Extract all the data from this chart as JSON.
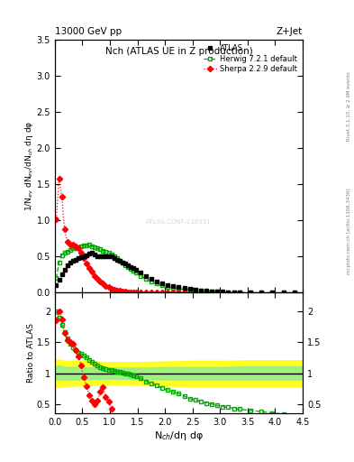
{
  "title_main": "13000 GeV pp",
  "title_right": "Z+Jet",
  "plot_title": "Nch (ATLAS UE in Z production)",
  "xlabel": "N$_{ch}$/dη dφ",
  "ylabel_main": "1/N$_{ev}$ dN$_{ev}$/dN$_{ch}$ dη dφ",
  "ylabel_ratio": "Ratio to ATLAS",
  "rivet_label": "Rivet 3.1.10, ≥ 2.9M events",
  "inspire_label": "mcplots.cern.ch [arXiv:1306.3436]",
  "watermark": "ATLAS-CONF-236531",
  "xlim": [
    0,
    4.5
  ],
  "ylim_main": [
    0,
    3.5
  ],
  "ylim_ratio": [
    0.35,
    2.3
  ],
  "atlas_x": [
    0.025,
    0.075,
    0.125,
    0.175,
    0.225,
    0.275,
    0.325,
    0.375,
    0.425,
    0.475,
    0.525,
    0.575,
    0.625,
    0.675,
    0.725,
    0.775,
    0.825,
    0.875,
    0.925,
    0.975,
    1.025,
    1.075,
    1.125,
    1.175,
    1.225,
    1.275,
    1.325,
    1.375,
    1.425,
    1.475,
    1.55,
    1.65,
    1.75,
    1.85,
    1.95,
    2.05,
    2.15,
    2.25,
    2.35,
    2.45,
    2.55,
    2.65,
    2.75,
    2.85,
    2.95,
    3.05,
    3.15,
    3.25,
    3.35,
    3.55,
    3.75,
    3.95,
    4.15,
    4.35
  ],
  "atlas_y": [
    0.1,
    0.18,
    0.25,
    0.32,
    0.38,
    0.42,
    0.44,
    0.46,
    0.48,
    0.49,
    0.5,
    0.52,
    0.54,
    0.55,
    0.53,
    0.51,
    0.5,
    0.5,
    0.5,
    0.51,
    0.5,
    0.48,
    0.46,
    0.44,
    0.42,
    0.4,
    0.38,
    0.36,
    0.34,
    0.32,
    0.28,
    0.23,
    0.19,
    0.16,
    0.13,
    0.11,
    0.09,
    0.075,
    0.062,
    0.052,
    0.043,
    0.035,
    0.028,
    0.022,
    0.017,
    0.013,
    0.01,
    0.008,
    0.006,
    0.004,
    0.003,
    0.002,
    0.001,
    0.0008
  ],
  "herwig_x": [
    0.025,
    0.075,
    0.125,
    0.175,
    0.225,
    0.275,
    0.325,
    0.375,
    0.425,
    0.475,
    0.525,
    0.575,
    0.625,
    0.675,
    0.725,
    0.775,
    0.825,
    0.875,
    0.925,
    0.975,
    1.025,
    1.075,
    1.125,
    1.175,
    1.225,
    1.275,
    1.325,
    1.375,
    1.425,
    1.475,
    1.55,
    1.65,
    1.75,
    1.85,
    1.95,
    2.05,
    2.15,
    2.25,
    2.35,
    2.45,
    2.55,
    2.65,
    2.75,
    2.85,
    2.95,
    3.05,
    3.15,
    3.25,
    3.35,
    3.55,
    3.75,
    3.95,
    4.15,
    4.35
  ],
  "herwig_y": [
    0.2,
    0.42,
    0.52,
    0.55,
    0.57,
    0.59,
    0.61,
    0.62,
    0.63,
    0.645,
    0.655,
    0.655,
    0.66,
    0.645,
    0.63,
    0.61,
    0.6,
    0.58,
    0.565,
    0.555,
    0.535,
    0.505,
    0.475,
    0.445,
    0.415,
    0.385,
    0.355,
    0.33,
    0.305,
    0.28,
    0.235,
    0.19,
    0.155,
    0.125,
    0.1,
    0.082,
    0.068,
    0.056,
    0.046,
    0.038,
    0.031,
    0.025,
    0.02,
    0.016,
    0.013,
    0.01,
    0.008,
    0.006,
    0.005,
    0.003,
    0.002,
    0.001,
    0.0007,
    0.0004
  ],
  "sherpa_x": [
    0.025,
    0.075,
    0.125,
    0.175,
    0.225,
    0.275,
    0.325,
    0.375,
    0.425,
    0.475,
    0.525,
    0.575,
    0.625,
    0.675,
    0.725,
    0.775,
    0.825,
    0.875,
    0.925,
    0.975,
    1.025,
    1.075,
    1.125,
    1.175,
    1.225,
    1.275,
    1.325,
    1.375,
    1.425,
    1.475,
    1.55,
    1.65,
    1.75,
    1.85,
    1.95,
    2.05,
    2.15,
    2.25,
    2.35
  ],
  "sherpa_y": [
    1.02,
    1.57,
    1.33,
    0.88,
    0.7,
    0.67,
    0.66,
    0.64,
    0.61,
    0.55,
    0.48,
    0.41,
    0.34,
    0.29,
    0.235,
    0.19,
    0.155,
    0.125,
    0.098,
    0.077,
    0.06,
    0.047,
    0.036,
    0.027,
    0.02,
    0.015,
    0.011,
    0.008,
    0.006,
    0.004,
    0.003,
    0.002,
    0.001,
    0.0007,
    0.0004,
    0.0003,
    0.0002,
    0.0001,
    5e-05
  ],
  "herwig_ratio_x": [
    0.025,
    0.075,
    0.125,
    0.175,
    0.225,
    0.275,
    0.325,
    0.375,
    0.425,
    0.475,
    0.525,
    0.575,
    0.625,
    0.675,
    0.725,
    0.775,
    0.825,
    0.875,
    0.925,
    0.975,
    1.025,
    1.075,
    1.125,
    1.175,
    1.225,
    1.275,
    1.325,
    1.375,
    1.425,
    1.475,
    1.55,
    1.65,
    1.75,
    1.85,
    1.95,
    2.05,
    2.15,
    2.25,
    2.35,
    2.45,
    2.55,
    2.65,
    2.75,
    2.85,
    2.95,
    3.05,
    3.15,
    3.25,
    3.35,
    3.55,
    3.75,
    3.95,
    4.15,
    4.35
  ],
  "herwig_ratio_y": [
    2.0,
    1.9,
    1.78,
    1.67,
    1.56,
    1.47,
    1.42,
    1.37,
    1.33,
    1.31,
    1.29,
    1.26,
    1.22,
    1.18,
    1.15,
    1.12,
    1.1,
    1.08,
    1.07,
    1.06,
    1.05,
    1.04,
    1.03,
    1.02,
    1.01,
    1.0,
    0.99,
    0.98,
    0.97,
    0.95,
    0.92,
    0.87,
    0.84,
    0.8,
    0.76,
    0.73,
    0.7,
    0.67,
    0.63,
    0.59,
    0.57,
    0.54,
    0.52,
    0.5,
    0.48,
    0.46,
    0.45,
    0.43,
    0.42,
    0.4,
    0.38,
    0.36,
    0.34,
    0.3
  ],
  "sherpa_ratio_x": [
    0.025,
    0.075,
    0.125,
    0.175,
    0.225,
    0.275,
    0.325,
    0.375,
    0.425,
    0.475,
    0.525,
    0.575,
    0.625,
    0.675,
    0.725,
    0.775,
    0.825,
    0.875,
    0.925,
    0.975,
    1.025
  ],
  "sherpa_ratio_y": [
    1.85,
    2.0,
    1.87,
    1.65,
    1.54,
    1.5,
    1.47,
    1.38,
    1.27,
    1.12,
    0.94,
    0.79,
    0.64,
    0.56,
    0.5,
    0.56,
    0.7,
    0.78,
    0.62,
    0.55,
    0.42
  ],
  "band_x": [
    0.0,
    0.1,
    0.2,
    0.5,
    1.0,
    1.5,
    2.0,
    2.5,
    3.0,
    3.5,
    4.0,
    4.5
  ],
  "band_green_upper": [
    1.12,
    1.12,
    1.1,
    1.1,
    1.09,
    1.09,
    1.1,
    1.1,
    1.1,
    1.11,
    1.11,
    1.11
  ],
  "band_green_lower": [
    0.9,
    0.9,
    0.9,
    0.9,
    0.91,
    0.91,
    0.9,
    0.9,
    0.9,
    0.9,
    0.9,
    0.9
  ],
  "band_yellow_upper": [
    1.22,
    1.22,
    1.2,
    1.2,
    1.18,
    1.18,
    1.19,
    1.2,
    1.2,
    1.21,
    1.21,
    1.21
  ],
  "band_yellow_lower": [
    0.78,
    0.78,
    0.8,
    0.8,
    0.82,
    0.82,
    0.8,
    0.79,
    0.79,
    0.79,
    0.79,
    0.79
  ],
  "atlas_color": "#000000",
  "herwig_color": "#00aa00",
  "sherpa_color": "#ff0000"
}
